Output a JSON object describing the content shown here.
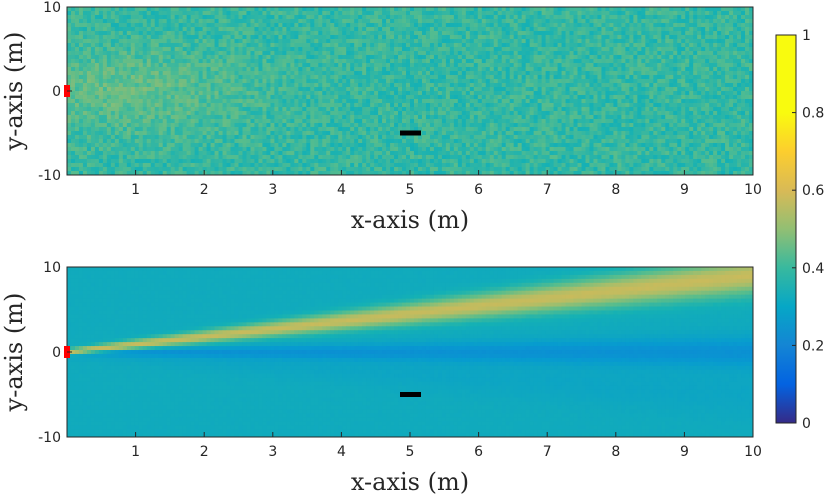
{
  "chart_data": [
    {
      "type": "heatmap",
      "title": "",
      "xlabel": "x-axis (m)",
      "ylabel": "y-axis (m)",
      "xlim": [
        0,
        10
      ],
      "ylim": [
        -10,
        10
      ],
      "xticks": [
        "1",
        "2",
        "3",
        "4",
        "5",
        "6",
        "7",
        "8",
        "9",
        "10"
      ],
      "yticks": [
        "10",
        "0",
        "-10"
      ],
      "pattern": "noisy, mean ~0.55, slightly higher near source at x=0,y=0",
      "annotations": [
        {
          "name": "transmitter",
          "x": 0,
          "y": 0,
          "color": "#ff0000"
        },
        {
          "name": "receiver",
          "x": 5,
          "y": -5,
          "color": "#000000"
        }
      ]
    },
    {
      "type": "heatmap",
      "title": "",
      "xlabel": "x-axis (m)",
      "ylabel": "y-axis (m)",
      "xlim": [
        0,
        10
      ],
      "ylim": [
        -10,
        10
      ],
      "xticks": [
        "1",
        "2",
        "3",
        "4",
        "5",
        "6",
        "7",
        "8",
        "9",
        "10"
      ],
      "yticks": [
        "10",
        "0",
        "-10"
      ],
      "pattern": "beam from (0,0) toward (10,9) with values up to ~0.85; ~0.3 along y=0; ~0.45 background",
      "annotations": [
        {
          "name": "transmitter",
          "x": 0,
          "y": 0,
          "color": "#ff0000"
        },
        {
          "name": "receiver",
          "x": 5,
          "y": -5,
          "color": "#000000"
        }
      ]
    }
  ],
  "colorbar": {
    "colormap": "parula",
    "range": [
      0,
      1
    ],
    "ticks": [
      "0",
      "0.2",
      "0.4",
      "0.6",
      "0.8",
      "1"
    ]
  }
}
